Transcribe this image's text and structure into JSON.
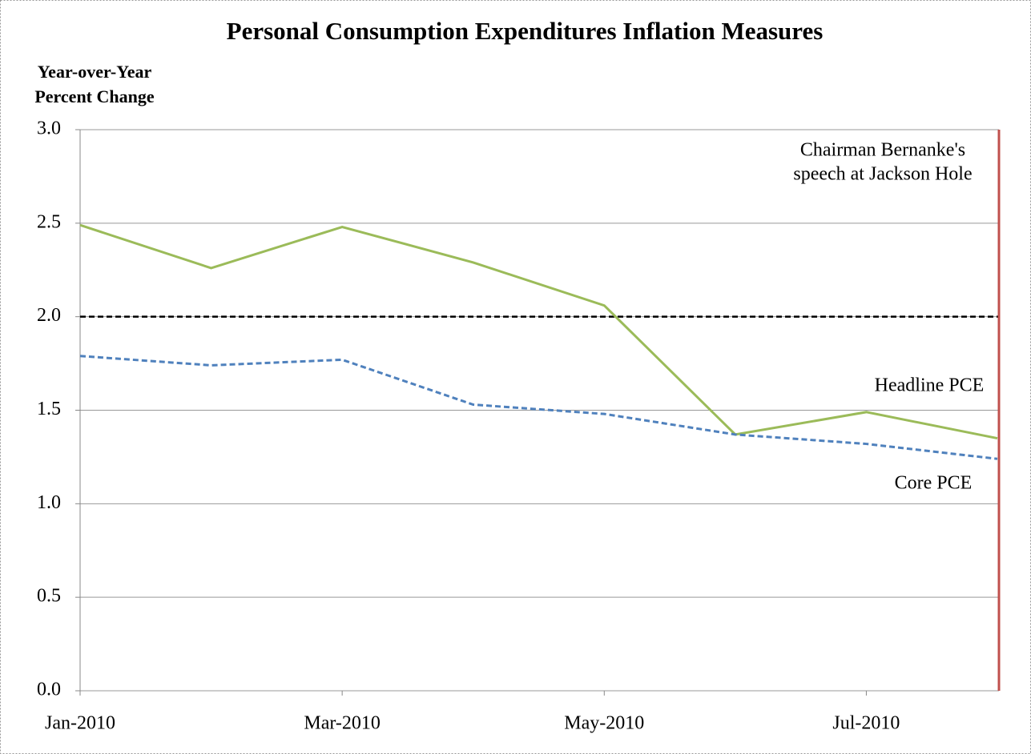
{
  "chart_data": {
    "type": "line",
    "title": "Personal Consumption Expenditures Inflation Measures",
    "ylabel": [
      "Year-over-Year",
      "Percent Change"
    ],
    "categories": [
      "Jan-2010",
      null,
      "Mar-2010",
      null,
      "May-2010",
      null,
      "Jul-2010",
      null
    ],
    "series": [
      {
        "name": "Headline PCE",
        "color": "#9bbb59",
        "dash": false,
        "values": [
          2.49,
          2.26,
          2.48,
          2.29,
          2.06,
          1.37,
          1.49,
          1.35
        ]
      },
      {
        "name": "Core PCE",
        "color": "#4f81bd",
        "dash": true,
        "values": [
          1.79,
          1.74,
          1.77,
          1.53,
          1.48,
          1.37,
          1.32,
          1.24
        ]
      }
    ],
    "reference_line": 2,
    "annotation": [
      "Chairman Bernanke's",
      "speech at Jackson Hole"
    ],
    "annotation_color": "#c0504d",
    "ylim": [
      0,
      3
    ],
    "yticks": [
      {
        "value": 0,
        "label": "0.0"
      },
      {
        "value": 0.5,
        "label": "0.5"
      },
      {
        "value": 1,
        "label": "1.0"
      },
      {
        "value": 1.5,
        "label": "1.5"
      },
      {
        "value": 2,
        "label": "2.0"
      },
      {
        "value": 2.5,
        "label": "2.5"
      },
      {
        "value": 3,
        "label": "3.0"
      }
    ],
    "grid": true
  }
}
